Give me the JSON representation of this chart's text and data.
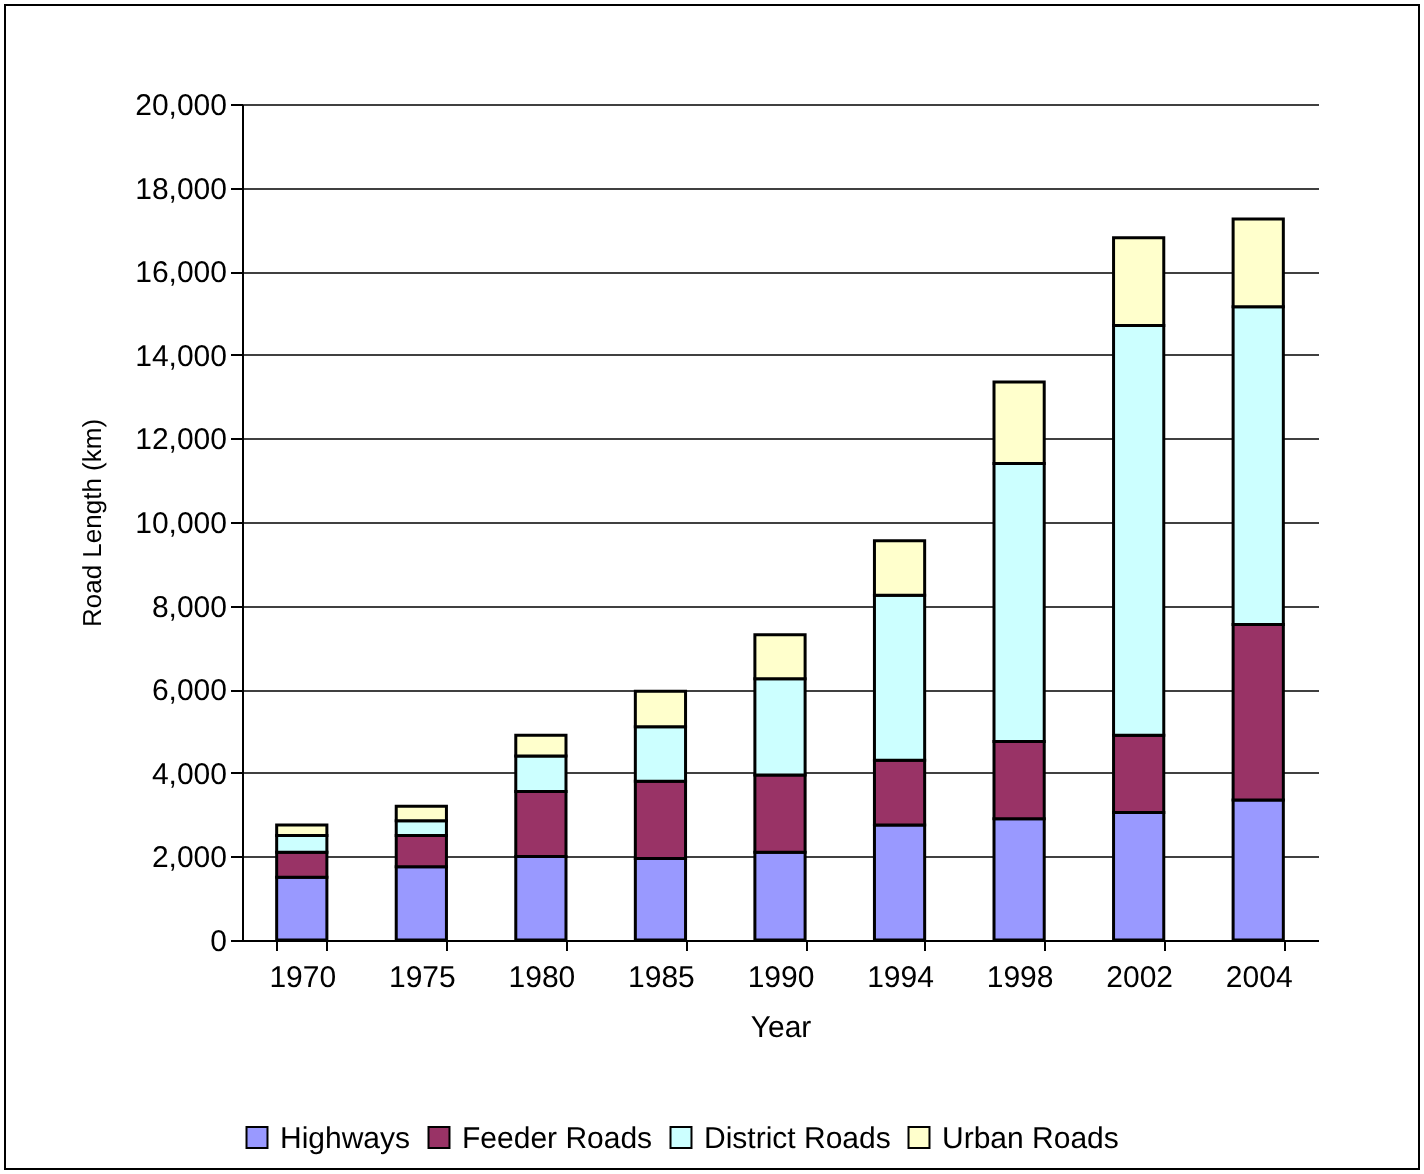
{
  "chart_data": {
    "type": "bar",
    "stacked": true,
    "xlabel": "Year",
    "ylabel": "Road Length (km)",
    "categories": [
      "1970",
      "1975",
      "1980",
      "1985",
      "1990",
      "1994",
      "1998",
      "2002",
      "2004"
    ],
    "series": [
      {
        "name": "Highways",
        "color": "#9999ff",
        "values": [
          1500,
          1750,
          2000,
          1950,
          2100,
          2750,
          2900,
          3050,
          3350
        ]
      },
      {
        "name": "Feeder Roads",
        "color": "#993366",
        "values": [
          600,
          750,
          1550,
          1850,
          1850,
          1550,
          1850,
          1850,
          4200
        ]
      },
      {
        "name": "District Roads",
        "color": "#ccffff",
        "values": [
          400,
          350,
          850,
          1300,
          2300,
          3950,
          6650,
          9800,
          7600
        ]
      },
      {
        "name": "Urban Roads",
        "color": "#ffffcc",
        "values": [
          250,
          350,
          500,
          850,
          1050,
          1300,
          1950,
          2100,
          2100
        ]
      }
    ],
    "ylim": [
      0,
      20000
    ],
    "yticks": [
      0,
      {
        "value": 2000,
        "label": "2,000"
      },
      {
        "value": 4000,
        "label": "4,000"
      },
      {
        "value": 6000,
        "label": "6,000"
      },
      {
        "value": 8000,
        "label": "8,000"
      },
      {
        "value": 10000,
        "label": "10,000"
      },
      {
        "value": 12000,
        "label": "12,000"
      },
      {
        "value": 14000,
        "label": "14,000"
      },
      {
        "value": 16000,
        "label": "16,000"
      },
      {
        "value": 18000,
        "label": "18,000"
      },
      {
        "value": 20000,
        "label": "20,000"
      }
    ],
    "grid": "y",
    "legend": "bottom"
  }
}
